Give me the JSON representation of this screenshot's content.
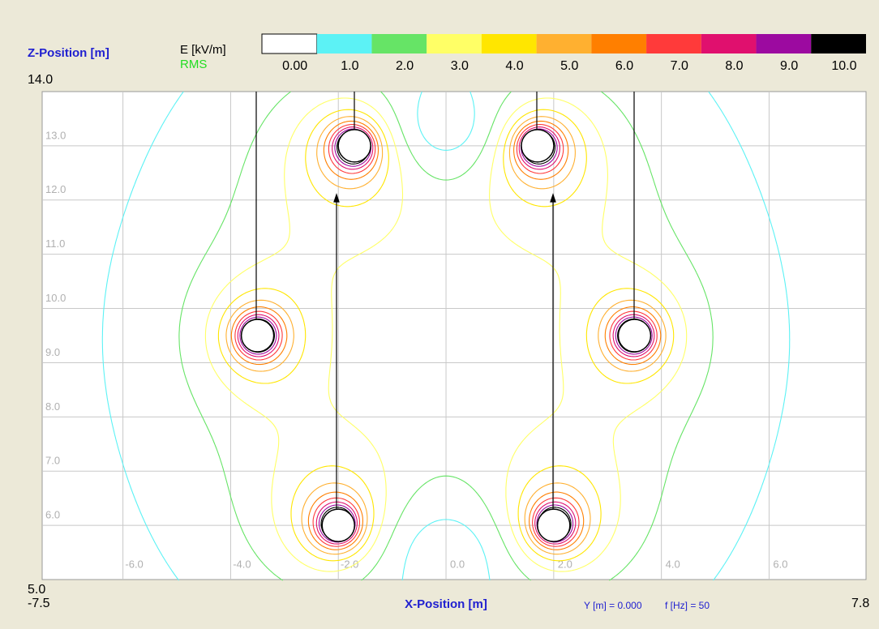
{
  "chart_data": {
    "type": "contour",
    "xlabel": "X-Position [m]",
    "ylabel": "Z-Position [m]",
    "colorbar_title": "E [kV/m]",
    "colorbar_subtitle": "RMS",
    "footer": [
      "Y [m] = 0.000",
      "f [Hz] = 50"
    ],
    "xlim": [
      -7.5,
      7.8
    ],
    "ylim": [
      5,
      14
    ],
    "xticks": [
      {
        "value": -7.5,
        "label": "-7.5"
      },
      {
        "value": -6,
        "label": "-6.0"
      },
      {
        "value": -4,
        "label": "-4.0"
      },
      {
        "value": -2,
        "label": "-2.0"
      },
      {
        "value": 0,
        "label": "0.0"
      },
      {
        "value": 2,
        "label": "2.0"
      },
      {
        "value": 4,
        "label": "4.0"
      },
      {
        "value": 6,
        "label": "6.0"
      },
      {
        "value": 7.8,
        "label": "7.8"
      }
    ],
    "yticks": [
      {
        "value": 5,
        "label": "5.0"
      },
      {
        "value": 6,
        "label": "6.0"
      },
      {
        "value": 7,
        "label": "7.0"
      },
      {
        "value": 8,
        "label": "8.0"
      },
      {
        "value": 9,
        "label": "9.0"
      },
      {
        "value": 10,
        "label": "10.0"
      },
      {
        "value": 11,
        "label": "11.0"
      },
      {
        "value": 12,
        "label": "12.0"
      },
      {
        "value": 13,
        "label": "13.0"
      },
      {
        "value": 14,
        "label": "14.0"
      }
    ],
    "grid": true,
    "levels": [
      {
        "value": 0,
        "label": "0.00"
      },
      {
        "value": 1,
        "label": "1.0"
      },
      {
        "value": 2,
        "label": "2.0"
      },
      {
        "value": 3,
        "label": "3.0"
      },
      {
        "value": 4,
        "label": "4.0"
      },
      {
        "value": 5,
        "label": "5.0"
      },
      {
        "value": 6,
        "label": "6.0"
      },
      {
        "value": 7,
        "label": "7.0"
      },
      {
        "value": 8,
        "label": "8.0"
      },
      {
        "value": 9,
        "label": "9.0"
      },
      {
        "value": 10,
        "label": "10.0"
      }
    ],
    "colors": [
      "#ffffff",
      "#5cf2f5",
      "#66e466",
      "#ffff66",
      "#ffe600",
      "#ffb030",
      "#ff7f00",
      "#ff3a3a",
      "#e0106e",
      "#9c0aa0",
      "#000000"
    ],
    "conductors": [
      {
        "x": -1.7,
        "z": 13
      },
      {
        "x": -3.5,
        "z": 9.5
      },
      {
        "x": -2,
        "z": 6
      },
      {
        "x": 1.7,
        "z": 13
      },
      {
        "x": 3.5,
        "z": 9.5
      },
      {
        "x": 2,
        "z": 6
      }
    ]
  }
}
